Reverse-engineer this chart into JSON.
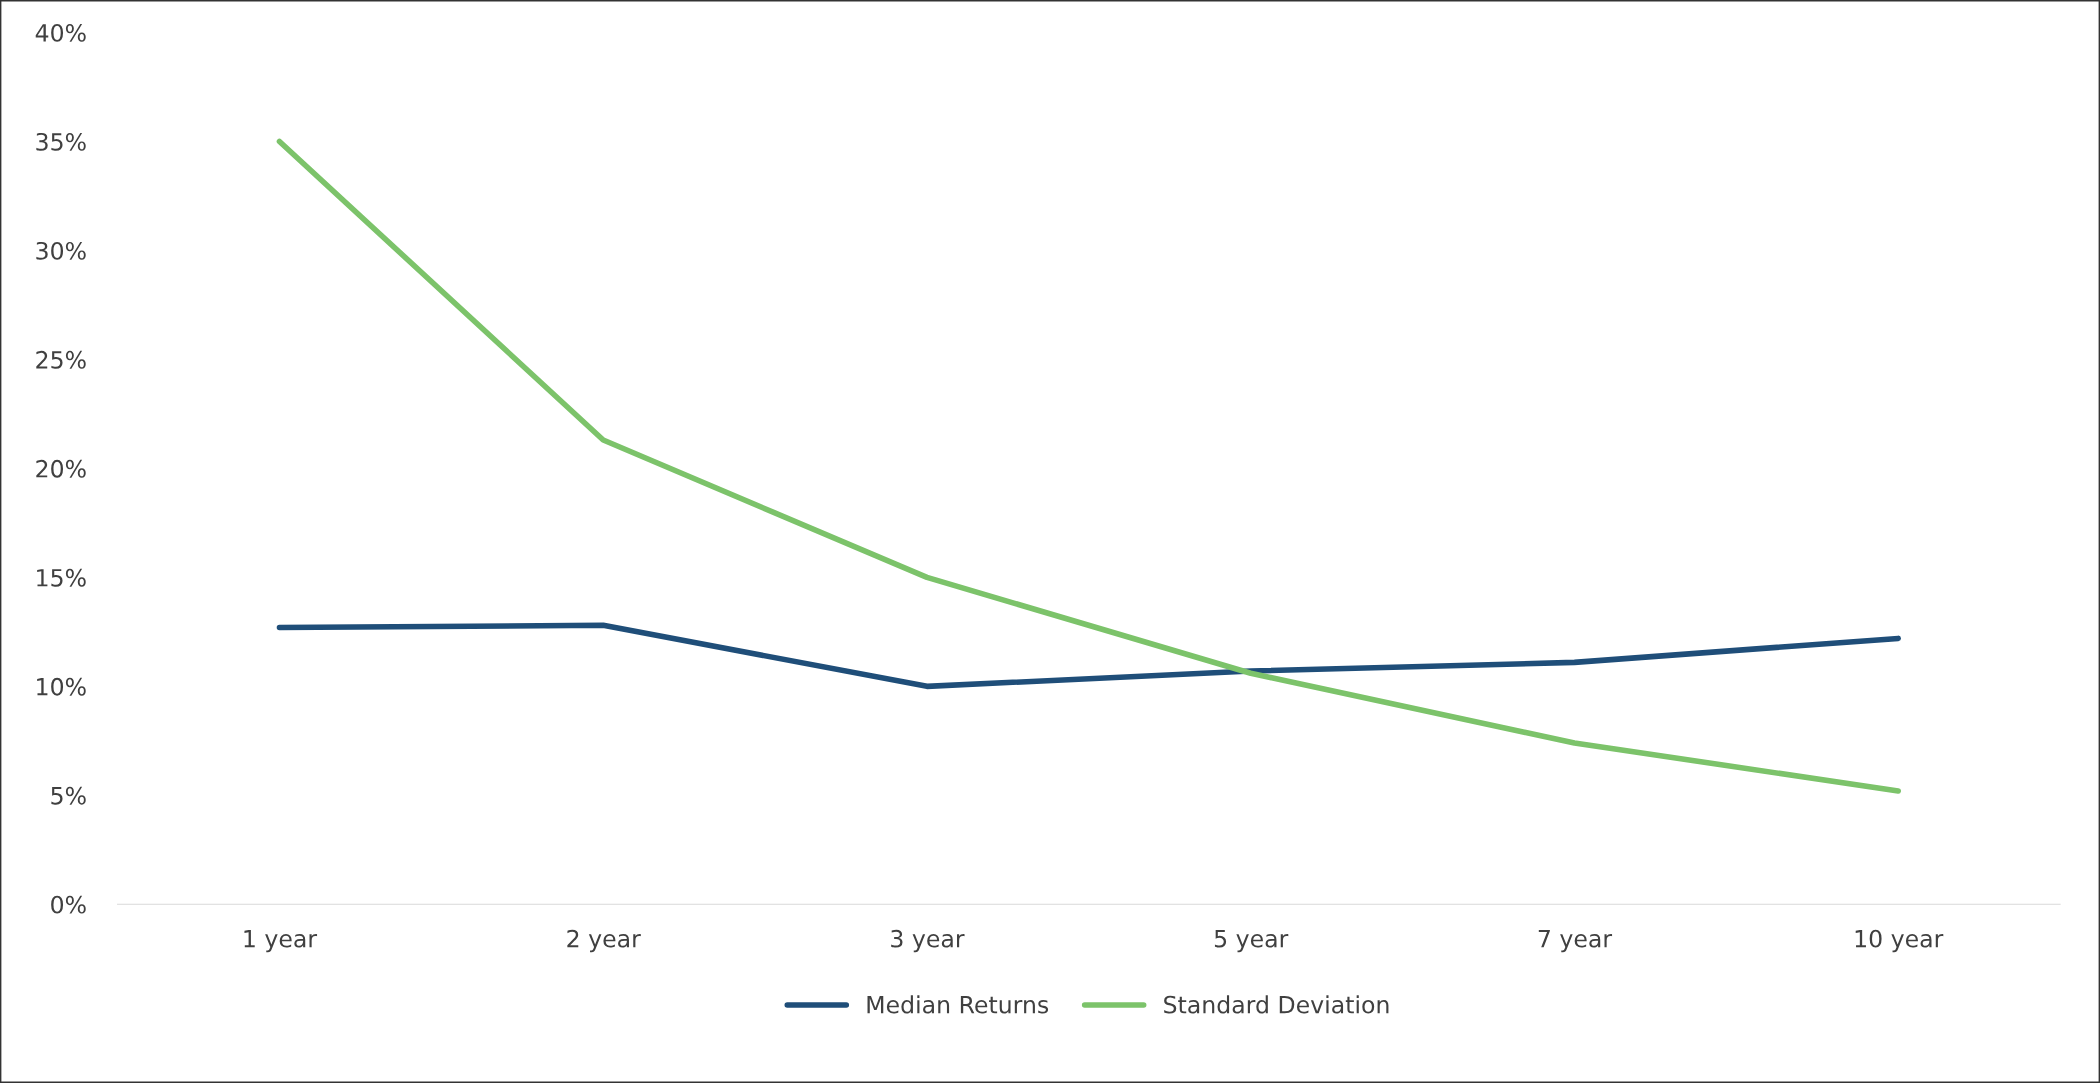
{
  "chart_data": {
    "type": "line",
    "categories": [
      "1 year",
      "2 year",
      "3 year",
      "5 year",
      "7 year",
      "10 year"
    ],
    "series": [
      {
        "name": "Median Returns",
        "color": "#1f4e79",
        "values": [
          12.7,
          12.8,
          10.0,
          10.7,
          11.1,
          12.2
        ]
      },
      {
        "name": "Standard Deviation",
        "color": "#7cc36a",
        "values": [
          35.0,
          21.3,
          15.0,
          10.6,
          7.4,
          5.2
        ]
      }
    ],
    "ylim": [
      0,
      40
    ],
    "yticks": [
      {
        "value": 0,
        "label": "0%"
      },
      {
        "value": 5,
        "label": "5%"
      },
      {
        "value": 10,
        "label": "10%"
      },
      {
        "value": 15,
        "label": "15%"
      },
      {
        "value": 20,
        "label": "20%"
      },
      {
        "value": 25,
        "label": "25%"
      },
      {
        "value": 30,
        "label": "30%"
      },
      {
        "value": 35,
        "label": "35%"
      },
      {
        "value": 40,
        "label": "40%"
      }
    ],
    "grid": false,
    "legend": "bottom",
    "marker": "none",
    "line_style": "solid"
  }
}
